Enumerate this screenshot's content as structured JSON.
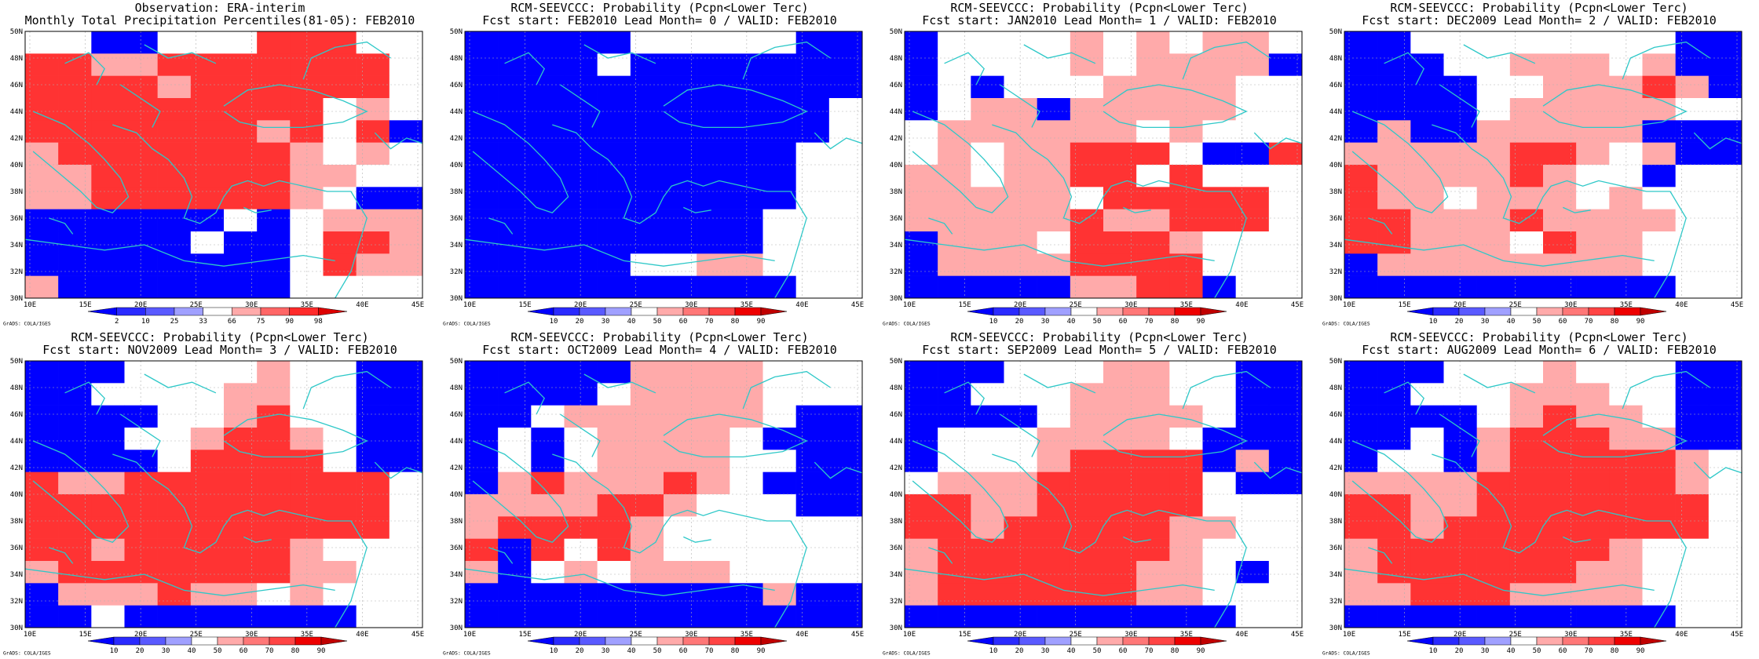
{
  "figure": {
    "lon_ticks": [
      "10E",
      "15E",
      "20E",
      "25E",
      "30E",
      "35E",
      "40E",
      "45E"
    ],
    "lat_ticks": [
      "30N",
      "32N",
      "34N",
      "36N",
      "38N",
      "40N",
      "42N",
      "44N",
      "46N",
      "48N",
      "50N"
    ],
    "credit": "GrADS: COLA/IGES",
    "coast_color": "#2ec8c8",
    "grid_color": "#b0b0b0"
  },
  "colorbars": {
    "obs": {
      "labels": [
        "2",
        "10",
        "25",
        "33",
        "66",
        "75",
        "90",
        "98"
      ],
      "colors": [
        "#0000ff",
        "#2a2aff",
        "#5a5aff",
        "#a0a0ff",
        "#ffffff",
        "#ffaaaa",
        "#ff6666",
        "#ff2a2a",
        "#dd0000"
      ]
    },
    "prob": {
      "labels": [
        "10",
        "20",
        "30",
        "40",
        "50",
        "60",
        "70",
        "80",
        "90"
      ],
      "colors": [
        "#0000ff",
        "#2a2aff",
        "#5a5aff",
        "#a0a0ff",
        "#ffffff",
        "#ffaaaa",
        "#ff7777",
        "#ff4444",
        "#ee0000",
        "#c00000"
      ]
    }
  },
  "panels": [
    {
      "title1": "Observation: ERA-interim",
      "title2": "Monthly Total Precipitation Percentiles(81-05): FEB2010",
      "cbar": "obs",
      "grid": [
        "WWBBWWWRRRWW",
        "RRPPRRRRRRRW",
        "RRRRPRRRRRRW",
        "RRRRRRRRRWPW",
        "RRRRRRRPRWRB",
        "PRRRRRRRPWPW",
        "PPRRRRRRPPWW",
        "PPRRRRRRPWBB",
        "BBBBBBWBWPPP",
        "BBBBBWBBWRRP",
        "BBBBBBBBWRPP",
        "PBBBBBBBWWWW"
      ]
    },
    {
      "title1": "RCM-SEEVCCC: Probability (Pcpn<Lower Terc)",
      "title2": "Fcst start: FEB2010  Lead Month= 0 / VALID: FEB2010",
      "cbar": "prob",
      "grid": [
        "BBBBBWWWWWBB",
        "BBBBWBBBBBBB",
        "BBBBBBBBBBBB",
        "BBBBBBBBBBBW",
        "BBBBBBBBBBBW",
        "BBBBBBBBBBWW",
        "BBBBBBBBBBWW",
        "BBBBBBBBBBWW",
        "BBBBBBBBBWWW",
        "BBBBBBBBBWWW",
        "BBBBBWWPPWWW",
        "BBBBBBBBBBWW"
      ]
    },
    {
      "title1": "RCM-SEEVCCC: Probability (Pcpn<Lower Terc)",
      "title2": "Fcst start: JAN2010  Lead Month= 1 / VALID: FEB2010",
      "cbar": "prob",
      "grid": [
        "BWWWWPWPWPPW",
        "BWWWWPWPPPPB",
        "BWBWWWPPPPWW",
        "BWPPBPPPPPWW",
        "WPPPPPPWPWWW",
        "WPWPPRRRWBBR",
        "PPWPPRRWRWWW",
        "PPPPPWRRRRRW",
        "PPPPPRPPRRRW",
        "BPPPWRRRPWWW",
        "BPPPPRRRRWWW",
        "BBBBBPPRRBWW"
      ]
    },
    {
      "title1": "RCM-SEEVCCC: Probability (Pcpn<Lower Terc)",
      "title2": "Fcst start: DEC2009  Lead Month= 2 / VALID: FEB2010",
      "cbar": "prob",
      "grid": [
        "BBWWWWWWWWBB",
        "BBBWWPPPWPBB",
        "BBBBWWPPPRPB",
        "BBBBWPPPPPWW",
        "BPBBPPPPPBBB",
        "PPPPPRRPWPBB",
        "RPPPPRPWWBWW",
        "RPPWPPPWPWWW",
        "RRPPPRPPPPWW",
        "RRPPPWRPPWWW",
        "BPPPPPPPPWWW",
        "BBBBBBBBBBWW"
      ]
    },
    {
      "title1": "RCM-SEEVCCC: Probability (Pcpn<Lower Terc)",
      "title2": "Fcst start: NOV2009  Lead Month= 3 / VALID: FEB2010",
      "cbar": "prob",
      "grid": [
        "BBBWWWWPWWBB",
        "BBWWWWPPWWBB",
        "BBBBWWPRWWBB",
        "BBBWWPRRPWBB",
        "BBBBWRRRRWBB",
        "RPPRRRRRRRRW",
        "RRRRRRRRRRRW",
        "RRRRRRRRRRRW",
        "RRPRRRRRPWWW",
        "PRRRRRRRPPWW",
        "BPPPRPPWPWWW",
        "BBWBBBBBBBWW"
      ]
    },
    {
      "title1": "RCM-SEEVCCC: Probability (Pcpn<Lower Terc)",
      "title2": "Fcst start: OCT2009  Lead Month= 4 / VALID: FEB2010",
      "cbar": "prob",
      "grid": [
        "BBBBBPPPPWWW",
        "BBBBWPPPPWWW",
        "BBWPPPPPPWBB",
        "BWBWPPPPWBBB",
        "BWBWPPPPWWBB",
        "BPRPPPRPWBBB",
        "PPPPRRPWWWBB",
        "PRRRRPWWWWWW",
        "RBRWRPWWWWWW",
        "PBWPWPPPWWWW",
        "BBBBBBBBBPBB",
        "BBBBBBBBBBBB"
      ]
    },
    {
      "title1": "RCM-SEEVCCC: Probability (Pcpn<Lower Terc)",
      "title2": "Fcst start: SEP2009  Lead Month= 5 / VALID: FEB2010",
      "cbar": "prob",
      "grid": [
        "BBBWWWPPWWBB",
        "BBWWWPPPWWBB",
        "BBBBWPPPPWBB",
        "BWWWPPPPWBBB",
        "BWWWPRRRRBPB",
        "WPPPRRRRRWBB",
        "RRPPRRRRRWWW",
        "RRPRRRRRPPWW",
        "PRRRRRRRPWWW",
        "PRRRRRRPPWBW",
        "PRRRRRRPPWWW",
        "BBBBBBBBBBWW"
      ]
    },
    {
      "title1": "RCM-SEEVCCC: Probability (Pcpn<Lower Terc)",
      "title2": "Fcst start: AUG2009  Lead Month= 6 / VALID: FEB2010",
      "cbar": "prob",
      "grid": [
        "BBBWWWPWWWBB",
        "BBWWWPPPWWBB",
        "BBBBWPRPPWBB",
        "BBWBPRRRPPBB",
        "BWWBPRRRRRPW",
        "PPPPRRRRRRPW",
        "RRPPRRRRRRRW",
        "RRPRRRRRRRRW",
        "PRRRRRRRPWWW",
        "PRRRRRRPPWWW",
        "PPRRRPPPPWWW",
        "BBBBBBBBBBWW"
      ]
    }
  ]
}
